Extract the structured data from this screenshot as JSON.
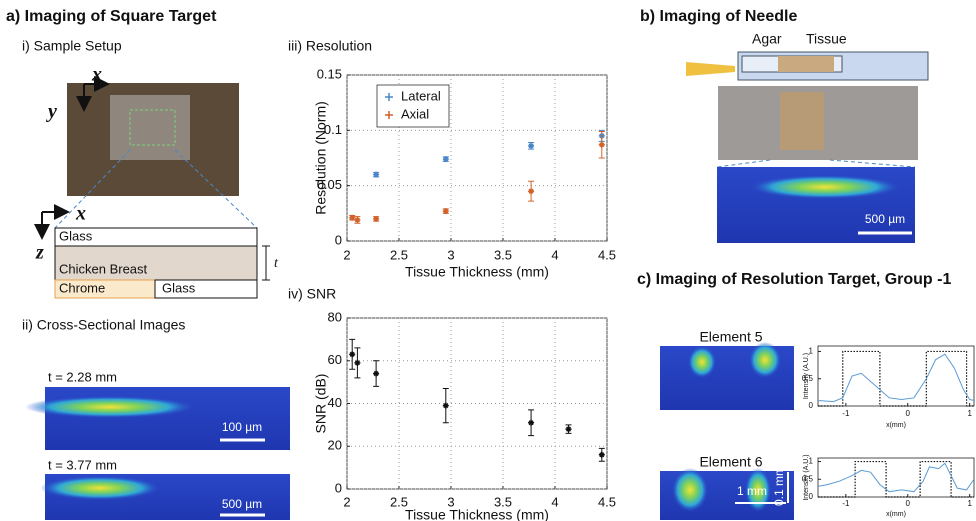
{
  "panel_a": {
    "title": "a) Imaging of Square Target",
    "setup": {
      "title": "i) Sample Setup",
      "x_axis": "x",
      "y_axis": "y",
      "x_axis_side": "x",
      "z_axis": "z",
      "layers": [
        "Glass",
        "Chicken Breast",
        "Chrome",
        "Glass"
      ],
      "thickness": "t"
    },
    "cross": {
      "title": "ii) Cross-Sectional Images",
      "images": [
        {
          "label": "t = 2.28 mm",
          "scale": "100 µm"
        },
        {
          "label": "t = 3.77 mm",
          "scale": "500 µm"
        }
      ]
    },
    "resolution_title": "iii) Resolution",
    "snr_title": "iv) SNR"
  },
  "panel_b": {
    "title": "b) Imaging of Needle",
    "labels": [
      "Agar",
      "Tissue"
    ],
    "scale": "500 µm"
  },
  "panel_c": {
    "title": "c) Imaging of Resolution Target, Group -1",
    "elements": [
      {
        "label": "Element 5"
      },
      {
        "label": "Element 6",
        "scale_x": "1 mm",
        "scale_y": "0.1 mm"
      }
    ]
  },
  "chart_data": [
    {
      "type": "scatter",
      "xlabel": "Tissue Thickness (mm)",
      "ylabel": "Resolution (Norm)",
      "xlim": [
        2,
        4.5
      ],
      "xticks": [
        2,
        2.5,
        3,
        3.5,
        4,
        4.5
      ],
      "ylim": [
        0,
        0.15
      ],
      "yticks": [
        0,
        0.05,
        0.1,
        0.15
      ],
      "grid": true,
      "legend": "upper left",
      "series": [
        {
          "name": "Lateral",
          "color": "#4a86c8",
          "x": [
            2.28,
            2.95,
            3.77,
            4.45
          ],
          "values": [
            0.06,
            0.074,
            0.086,
            0.095
          ],
          "errors": [
            0.002,
            0.002,
            0.003,
            0.005
          ]
        },
        {
          "name": "Axial",
          "color": "#d2622a",
          "x": [
            2.05,
            2.1,
            2.28,
            2.95,
            3.77,
            4.45
          ],
          "values": [
            0.021,
            0.019,
            0.02,
            0.027,
            0.045,
            0.087
          ],
          "errors": [
            0.002,
            0.003,
            0.002,
            0.002,
            0.009,
            0.012
          ]
        }
      ]
    },
    {
      "type": "scatter",
      "xlabel": "Tissue Thickness (mm)",
      "ylabel": "SNR (dB)",
      "xlim": [
        2,
        4.5
      ],
      "xticks": [
        2,
        2.5,
        3,
        3.5,
        4,
        4.5
      ],
      "ylim": [
        0,
        80
      ],
      "yticks": [
        0,
        20,
        40,
        60,
        80
      ],
      "grid": true,
      "series": [
        {
          "color": "#111111",
          "x": [
            2.05,
            2.1,
            2.28,
            2.95,
            3.77,
            4.13,
            4.45
          ],
          "values": [
            63,
            59,
            54,
            39,
            31,
            28,
            16
          ],
          "errors": [
            7,
            7,
            6,
            8,
            6,
            2,
            3
          ]
        }
      ]
    },
    {
      "type": "line",
      "xlabel": "x(mm)",
      "ylabel": "Intensity (A.U.)",
      "xlim": [
        -1.45,
        1.07
      ],
      "xticks": [
        -1,
        0,
        1
      ],
      "ylim": [
        0,
        1.1
      ],
      "yticks": [
        0,
        0.5,
        1
      ],
      "series": [
        {
          "color": "#111111",
          "dash": "dotted",
          "x": [
            -1.45,
            -1.05,
            -1.05,
            -0.45,
            -0.45,
            0.3,
            0.3,
            0.95,
            0.95,
            1.07
          ],
          "values": [
            0,
            0,
            1,
            1,
            0,
            0,
            1,
            1,
            0,
            0
          ]
        },
        {
          "color": "#5b9bd5",
          "x": [
            -1.45,
            -1.2,
            -1.05,
            -0.9,
            -0.75,
            -0.6,
            -0.45,
            -0.3,
            -0.1,
            0.1,
            0.3,
            0.45,
            0.6,
            0.75,
            0.9,
            1.0,
            1.07
          ],
          "values": [
            0.1,
            0.08,
            0.15,
            0.55,
            0.6,
            0.45,
            0.3,
            0.15,
            0.12,
            0.15,
            0.5,
            0.85,
            0.95,
            0.7,
            0.3,
            0.12,
            0.1
          ]
        }
      ]
    },
    {
      "type": "line",
      "xlabel": "x(mm)",
      "ylabel": "Intensity (A.U.)",
      "xlim": [
        -1.45,
        1.07
      ],
      "xticks": [
        -1,
        0,
        1
      ],
      "ylim": [
        0,
        1.1
      ],
      "yticks": [
        0,
        0.5,
        1
      ],
      "series": [
        {
          "color": "#111111",
          "dash": "dotted",
          "x": [
            -1.45,
            -0.85,
            -0.85,
            -0.35,
            -0.35,
            0.2,
            0.2,
            0.7,
            0.7,
            1.07
          ],
          "values": [
            0,
            0,
            1,
            1,
            0,
            0,
            1,
            1,
            0,
            0
          ]
        },
        {
          "color": "#5b9bd5",
          "x": [
            -1.45,
            -1.3,
            -1.1,
            -0.9,
            -0.75,
            -0.6,
            -0.45,
            -0.3,
            -0.1,
            0.1,
            0.25,
            0.35,
            0.5,
            0.6,
            0.7,
            0.8,
            0.95,
            1.07
          ],
          "values": [
            0.3,
            0.35,
            0.45,
            0.6,
            0.75,
            0.7,
            0.35,
            0.15,
            0.2,
            0.15,
            0.45,
            0.85,
            0.8,
            0.95,
            0.6,
            0.25,
            0.2,
            0.5
          ]
        }
      ]
    }
  ]
}
